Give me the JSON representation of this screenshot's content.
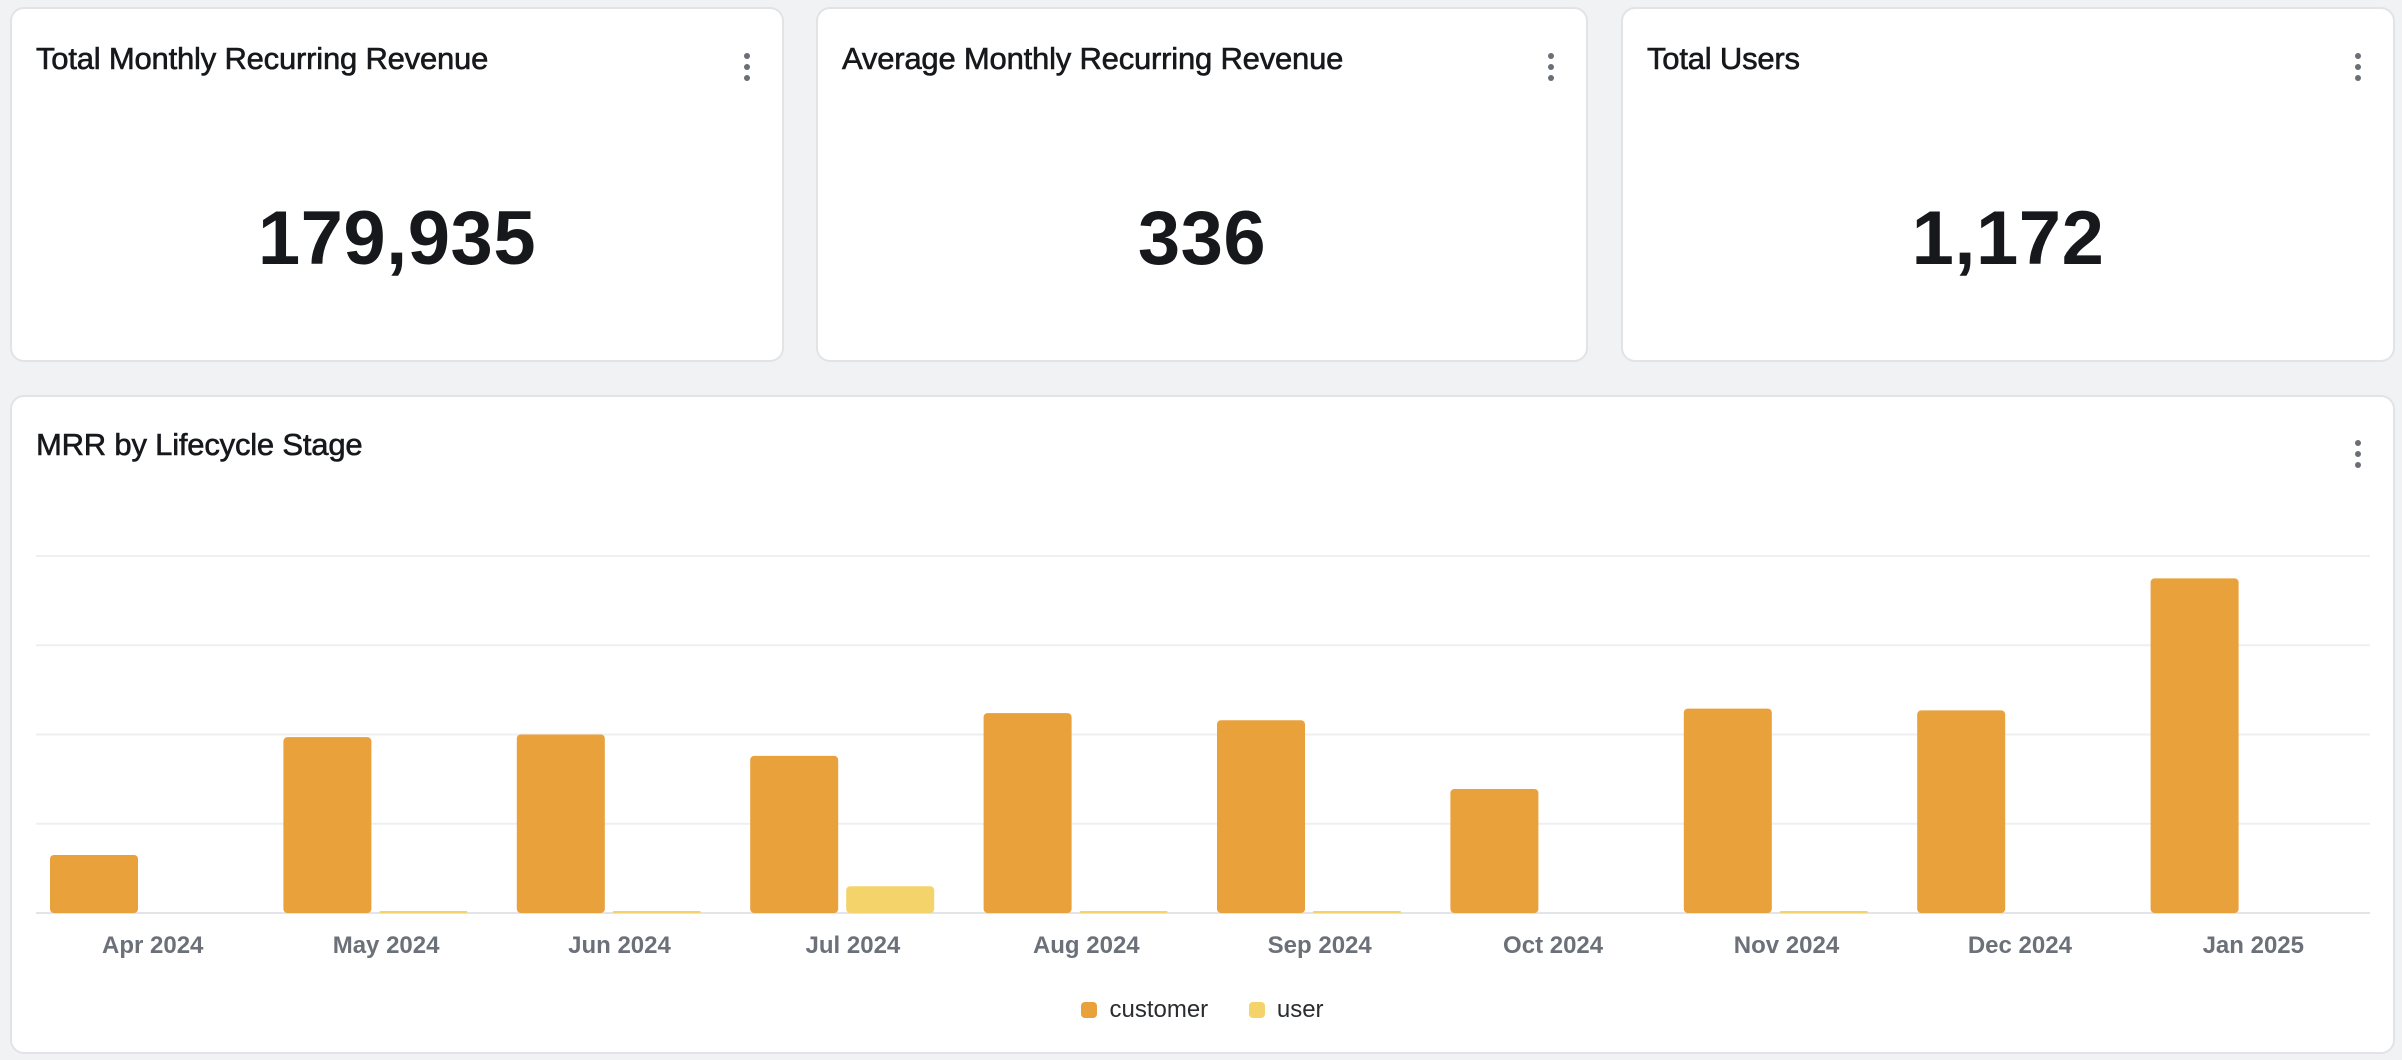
{
  "kpis": [
    {
      "title": "Total Monthly Recurring Revenue",
      "value": "179,935"
    },
    {
      "title": "Average Monthly Recurring Revenue",
      "value": "336"
    },
    {
      "title": "Total Users",
      "value": "1,172"
    }
  ],
  "chart_card": {
    "title": "MRR by Lifecycle Stage"
  },
  "icons": {
    "menu": "kebab-menu-icon"
  },
  "chart_data": {
    "type": "bar",
    "categories": [
      "Apr 2024",
      "May 2024",
      "Jun 2024",
      "Jul 2024",
      "Aug 2024",
      "Sep 2024",
      "Oct 2024",
      "Nov 2024",
      "Dec 2024",
      "Jan 2025"
    ],
    "series": [
      {
        "name": "customer",
        "color": "#e8a13b",
        "values": [
          6500,
          19700,
          20000,
          17600,
          22400,
          21600,
          13900,
          22900,
          22700,
          37500
        ]
      },
      {
        "name": "user",
        "color": "#f3d36a",
        "values": [
          0,
          200,
          100,
          3000,
          200,
          100,
          0,
          100,
          0,
          0
        ]
      }
    ],
    "ylim": [
      0,
      40000
    ],
    "grid": true,
    "legend": "bottom",
    "xlabel": "",
    "ylabel": ""
  }
}
